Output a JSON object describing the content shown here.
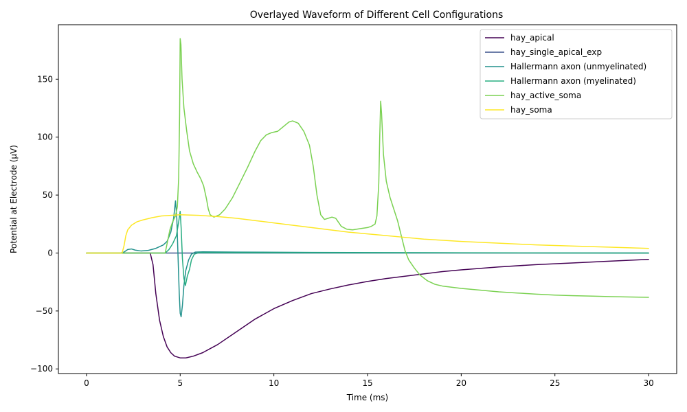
{
  "chart_data": {
    "type": "line",
    "title": "Overlayed Waveform of Different Cell Configurations",
    "xlabel": "Time (ms)",
    "ylabel": "Potential at Electrode (µV)",
    "xlim": [
      -1.5,
      31.5
    ],
    "ylim": [
      -104,
      197
    ],
    "xticks": [
      0,
      5,
      10,
      15,
      20,
      25,
      30
    ],
    "yticks": [
      -100,
      -50,
      0,
      50,
      100,
      150
    ],
    "grid": false,
    "legend_position": "top-right",
    "series": [
      {
        "name": "hay_apical",
        "color": "#440154",
        "points": [
          [
            0,
            0
          ],
          [
            3.0,
            0
          ],
          [
            3.4,
            0
          ],
          [
            3.55,
            -10
          ],
          [
            3.7,
            -35
          ],
          [
            3.9,
            -58
          ],
          [
            4.1,
            -72
          ],
          [
            4.3,
            -81
          ],
          [
            4.5,
            -86
          ],
          [
            4.7,
            -89
          ],
          [
            5.0,
            -90.5
          ],
          [
            5.3,
            -90.5
          ],
          [
            5.7,
            -89
          ],
          [
            6.2,
            -86
          ],
          [
            7,
            -79
          ],
          [
            8,
            -68
          ],
          [
            9,
            -57
          ],
          [
            10,
            -48
          ],
          [
            11,
            -41
          ],
          [
            12,
            -35
          ],
          [
            13,
            -31
          ],
          [
            14,
            -27.5
          ],
          [
            15,
            -24.5
          ],
          [
            16,
            -22
          ],
          [
            17,
            -20
          ],
          [
            18,
            -18
          ],
          [
            19,
            -16
          ],
          [
            20,
            -14.5
          ],
          [
            22,
            -12
          ],
          [
            24,
            -10
          ],
          [
            26,
            -8.5
          ],
          [
            28,
            -7
          ],
          [
            30,
            -5.5
          ]
        ]
      },
      {
        "name": "hay_single_apical_exp",
        "color": "#3b528b",
        "points": [
          [
            0,
            0
          ],
          [
            30,
            0
          ]
        ]
      },
      {
        "name": "Hallermann axon (unmyelinated)",
        "color": "#21918c",
        "points": [
          [
            0,
            0
          ],
          [
            1.8,
            0
          ],
          [
            2.0,
            0.8
          ],
          [
            2.2,
            3
          ],
          [
            2.4,
            3.5
          ],
          [
            2.6,
            2.5
          ],
          [
            2.9,
            1.8
          ],
          [
            3.3,
            2.3
          ],
          [
            3.7,
            4
          ],
          [
            4.1,
            7
          ],
          [
            4.3,
            10
          ],
          [
            4.5,
            18
          ],
          [
            4.65,
            30
          ],
          [
            4.75,
            45
          ],
          [
            4.82,
            30
          ],
          [
            4.88,
            0
          ],
          [
            4.95,
            -35
          ],
          [
            5.0,
            -52
          ],
          [
            5.05,
            -55
          ],
          [
            5.12,
            -45
          ],
          [
            5.2,
            -28
          ],
          [
            5.3,
            -15
          ],
          [
            5.45,
            -6
          ],
          [
            5.6,
            -1
          ],
          [
            5.8,
            0.8
          ],
          [
            6.2,
            1
          ],
          [
            8,
            0.8
          ],
          [
            12,
            0.5
          ],
          [
            20,
            0.2
          ],
          [
            30,
            0
          ]
        ]
      },
      {
        "name": "Hallermann axon (myelinated)",
        "color": "#27ad81",
        "points": [
          [
            0,
            0
          ],
          [
            4.2,
            0
          ],
          [
            4.4,
            3
          ],
          [
            4.6,
            8
          ],
          [
            4.8,
            15
          ],
          [
            4.93,
            28
          ],
          [
            5.0,
            36
          ],
          [
            5.05,
            22
          ],
          [
            5.12,
            -5
          ],
          [
            5.2,
            -22
          ],
          [
            5.28,
            -28
          ],
          [
            5.38,
            -20
          ],
          [
            5.5,
            -14
          ],
          [
            5.6,
            -6
          ],
          [
            5.75,
            -1
          ],
          [
            6,
            0.3
          ],
          [
            8,
            0.2
          ],
          [
            30,
            0
          ]
        ]
      },
      {
        "name": "hay_active_soma",
        "color": "#7ad151",
        "points": [
          [
            0,
            0
          ],
          [
            4.2,
            0
          ],
          [
            4.3,
            8
          ],
          [
            4.45,
            20
          ],
          [
            4.6,
            27
          ],
          [
            4.75,
            32
          ],
          [
            4.85,
            40
          ],
          [
            4.92,
            65
          ],
          [
            4.97,
            120
          ],
          [
            5.0,
            185
          ],
          [
            5.04,
            180
          ],
          [
            5.1,
            150
          ],
          [
            5.2,
            125
          ],
          [
            5.35,
            105
          ],
          [
            5.5,
            88
          ],
          [
            5.7,
            77
          ],
          [
            5.9,
            70
          ],
          [
            6.1,
            64
          ],
          [
            6.25,
            58
          ],
          [
            6.4,
            47
          ],
          [
            6.5,
            38
          ],
          [
            6.6,
            33
          ],
          [
            6.8,
            31
          ],
          [
            7.1,
            33
          ],
          [
            7.4,
            38
          ],
          [
            7.8,
            48
          ],
          [
            8.2,
            61
          ],
          [
            8.6,
            74
          ],
          [
            9.0,
            88
          ],
          [
            9.3,
            97
          ],
          [
            9.6,
            102
          ],
          [
            9.9,
            104
          ],
          [
            10.2,
            105
          ],
          [
            10.5,
            109
          ],
          [
            10.8,
            113
          ],
          [
            11.0,
            114
          ],
          [
            11.3,
            112
          ],
          [
            11.6,
            105
          ],
          [
            11.9,
            93
          ],
          [
            12.1,
            75
          ],
          [
            12.3,
            50
          ],
          [
            12.5,
            33
          ],
          [
            12.7,
            29
          ],
          [
            12.9,
            30
          ],
          [
            13.1,
            31
          ],
          [
            13.3,
            30
          ],
          [
            13.6,
            23
          ],
          [
            13.9,
            20.5
          ],
          [
            14.2,
            20
          ],
          [
            14.6,
            21
          ],
          [
            15.0,
            22
          ],
          [
            15.2,
            23
          ],
          [
            15.4,
            25
          ],
          [
            15.5,
            32
          ],
          [
            15.6,
            60
          ],
          [
            15.65,
            100
          ],
          [
            15.7,
            131
          ],
          [
            15.75,
            120
          ],
          [
            15.85,
            85
          ],
          [
            16.0,
            62
          ],
          [
            16.2,
            48
          ],
          [
            16.4,
            38
          ],
          [
            16.6,
            28
          ],
          [
            16.8,
            15
          ],
          [
            17.0,
            2
          ],
          [
            17.2,
            -6
          ],
          [
            17.5,
            -13
          ],
          [
            17.8,
            -19
          ],
          [
            18.2,
            -24
          ],
          [
            18.6,
            -27
          ],
          [
            19,
            -28.5
          ],
          [
            20,
            -30.5
          ],
          [
            21,
            -32
          ],
          [
            22,
            -33.5
          ],
          [
            23,
            -34.5
          ],
          [
            24,
            -35.5
          ],
          [
            25,
            -36.3
          ],
          [
            26,
            -36.8
          ],
          [
            27,
            -37.2
          ],
          [
            28,
            -37.6
          ],
          [
            29,
            -37.9
          ],
          [
            30,
            -38.2
          ]
        ]
      },
      {
        "name": "hay_soma",
        "color": "#fde725",
        "points": [
          [
            0,
            0
          ],
          [
            1.9,
            0
          ],
          [
            2.0,
            6
          ],
          [
            2.1,
            15
          ],
          [
            2.2,
            20
          ],
          [
            2.4,
            24
          ],
          [
            2.7,
            27
          ],
          [
            3.0,
            28.5
          ],
          [
            3.5,
            30.5
          ],
          [
            4.0,
            32
          ],
          [
            4.5,
            32.5
          ],
          [
            5.0,
            33
          ],
          [
            6,
            32.5
          ],
          [
            7,
            31.5
          ],
          [
            8,
            30
          ],
          [
            9,
            28
          ],
          [
            10,
            26
          ],
          [
            11,
            24
          ],
          [
            12,
            22
          ],
          [
            13,
            20
          ],
          [
            14,
            18
          ],
          [
            15,
            16.5
          ],
          [
            16,
            15
          ],
          [
            17,
            13.5
          ],
          [
            18,
            12
          ],
          [
            19,
            11
          ],
          [
            20,
            10
          ],
          [
            22,
            8.5
          ],
          [
            24,
            7
          ],
          [
            26,
            6
          ],
          [
            28,
            5
          ],
          [
            30,
            4
          ]
        ]
      }
    ]
  }
}
